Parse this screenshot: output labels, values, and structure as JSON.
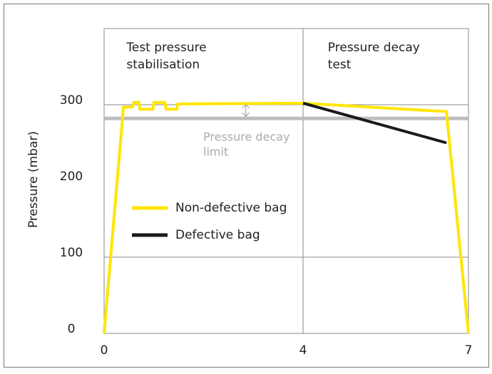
{
  "chart_data": {
    "type": "line",
    "y_label": "Pressure (mbar)",
    "xlim": [
      0,
      7
    ],
    "xticks": [
      0,
      4,
      7
    ],
    "ylim": [
      0,
      400
    ],
    "yticks": [
      0,
      100,
      200,
      300
    ],
    "y_gridlines": [
      100,
      300
    ],
    "x_gridlines": [
      4
    ],
    "sections": [
      {
        "lines": [
          "Test pressure",
          "stabilisation"
        ],
        "x": 0.45
      },
      {
        "lines": [
          "Pressure decay",
          "test"
        ],
        "x": 4.45
      }
    ],
    "limit": {
      "value": 282,
      "color": "#bdbdbd",
      "label_lines": [
        "Pressure decay",
        "limit"
      ],
      "arrow_x": 2.85
    },
    "series": [
      {
        "name": "Non-defective bag",
        "color": "#ffe600",
        "x": [
          0,
          0.39,
          0.57,
          0.6,
          0.7,
          0.72,
          0.98,
          1.0,
          1.22,
          1.25,
          1.46,
          1.48,
          4,
          6.6,
          7
        ],
        "values": [
          0,
          297,
          297,
          303,
          303,
          294,
          294,
          303,
          303,
          294,
          294,
          301,
          302,
          291,
          0
        ]
      },
      {
        "name": "Defective bag",
        "color": "#1a1a1a",
        "x": [
          4,
          6.6
        ],
        "values": [
          302,
          250
        ]
      }
    ]
  }
}
